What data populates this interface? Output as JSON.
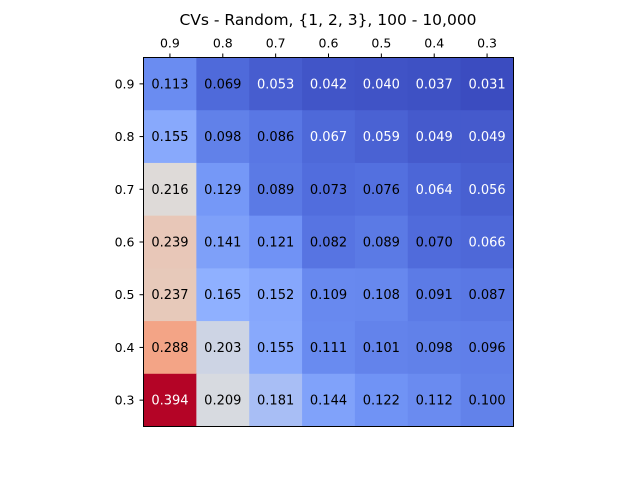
{
  "chart_data": {
    "type": "heatmap",
    "title": "CVs - Random, {1, 2, 3}, 100 - 10,000",
    "xlabel": "",
    "ylabel": "",
    "x_categories": [
      "0.9",
      "0.8",
      "0.7",
      "0.6",
      "0.5",
      "0.4",
      "0.3"
    ],
    "y_categories": [
      "0.9",
      "0.8",
      "0.7",
      "0.6",
      "0.5",
      "0.4",
      "0.3"
    ],
    "x_axis_position": "top",
    "colormap": "coolwarm",
    "value_range": [
      0.031,
      0.394
    ],
    "grid": false,
    "values": [
      [
        "0.113",
        "0.069",
        "0.053",
        "0.042",
        "0.040",
        "0.037",
        "0.031"
      ],
      [
        "0.155",
        "0.098",
        "0.086",
        "0.067",
        "0.059",
        "0.049",
        "0.049"
      ],
      [
        "0.216",
        "0.129",
        "0.089",
        "0.073",
        "0.076",
        "0.064",
        "0.056"
      ],
      [
        "0.239",
        "0.141",
        "0.121",
        "0.082",
        "0.089",
        "0.070",
        "0.066"
      ],
      [
        "0.237",
        "0.165",
        "0.152",
        "0.109",
        "0.108",
        "0.091",
        "0.087"
      ],
      [
        "0.288",
        "0.203",
        "0.155",
        "0.111",
        "0.101",
        "0.098",
        "0.096"
      ],
      [
        "0.394",
        "0.209",
        "0.181",
        "0.144",
        "0.122",
        "0.112",
        "0.100"
      ]
    ]
  }
}
